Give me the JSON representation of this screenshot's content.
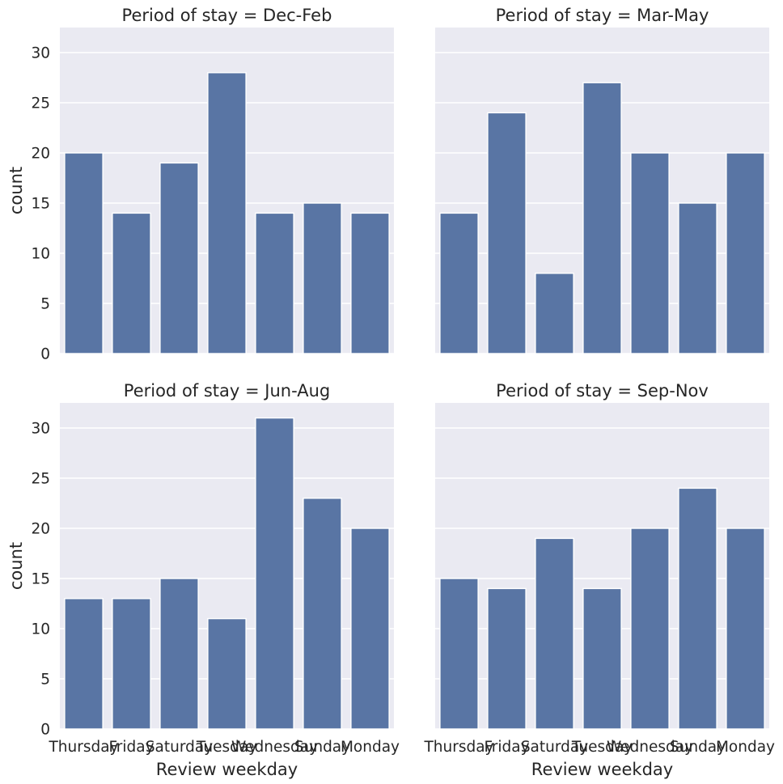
{
  "chart_data": {
    "type": "bar",
    "layout": "facet-grid-2x2",
    "sharex": true,
    "sharey": true,
    "ylim": [
      0,
      32.5
    ],
    "yticks": [
      0,
      5,
      10,
      15,
      20,
      25,
      30
    ],
    "ylabel": "count",
    "xlabel": "Review weekday",
    "categories": [
      "Thursday",
      "Friday",
      "Saturday",
      "Tuesday",
      "Wednesday",
      "Sunday",
      "Monday"
    ],
    "grid": true,
    "colors": {
      "bar": "#5975a4",
      "panel_background": "#eaeaf2",
      "grid": "#ffffff",
      "text": "#262626"
    },
    "panels": [
      {
        "title": "Period of stay = Dec-Feb",
        "values": [
          20,
          14,
          19,
          28,
          14,
          15,
          14
        ]
      },
      {
        "title": "Period of stay = Mar-May",
        "values": [
          14,
          24,
          8,
          27,
          20,
          15,
          20
        ]
      },
      {
        "title": "Period of stay = Jun-Aug",
        "values": [
          13,
          13,
          15,
          11,
          31,
          23,
          20
        ]
      },
      {
        "title": "Period of stay = Sep-Nov",
        "values": [
          15,
          14,
          19,
          14,
          20,
          24,
          20
        ]
      }
    ]
  }
}
